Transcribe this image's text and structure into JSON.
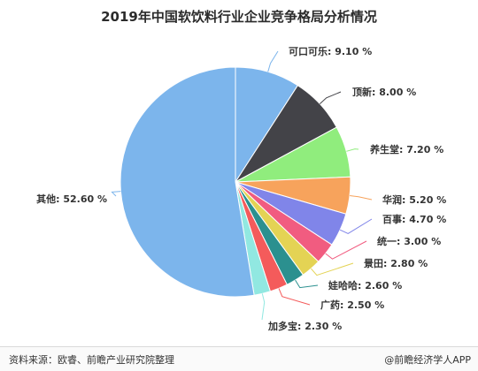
{
  "page": {
    "title": "2019年中国软饮料行业企业竞争格局分析情况",
    "source": "资料来源：欧睿、前瞻产业研究院整理",
    "brand": "@前瞻经济学人APP"
  },
  "chart_data": {
    "type": "pie",
    "title": "2019年中国软饮料行业企业竞争格局分析情况",
    "slices": [
      {
        "name": "可口可乐",
        "value": 9.1,
        "label": "可口可乐: 9.10 %",
        "color": "#7cb5ec"
      },
      {
        "name": "顶新",
        "value": 8.0,
        "label": "顶新: 8.00 %",
        "color": "#434348"
      },
      {
        "name": "养生堂",
        "value": 7.2,
        "label": "养生堂: 7.20 %",
        "color": "#90ed7d"
      },
      {
        "name": "华润",
        "value": 5.2,
        "label": "华润: 5.20 %",
        "color": "#f7a35c"
      },
      {
        "name": "百事",
        "value": 4.7,
        "label": "百事: 4.70 %",
        "color": "#8085e9"
      },
      {
        "name": "统一",
        "value": 3.0,
        "label": "统一: 3.00 %",
        "color": "#f15c80"
      },
      {
        "name": "景田",
        "value": 2.8,
        "label": "景田: 2.80 %",
        "color": "#e4d354"
      },
      {
        "name": "娃哈哈",
        "value": 2.6,
        "label": "娃哈哈: 2.60 %",
        "color": "#2b908f"
      },
      {
        "name": "广药",
        "value": 2.5,
        "label": "广药: 2.50 %",
        "color": "#f45b5b"
      },
      {
        "name": "加多宝",
        "value": 2.3,
        "label": "加多宝: 2.30 %",
        "color": "#91e8e1"
      },
      {
        "name": "其他",
        "value": 52.6,
        "label": "其他: 52.60 %",
        "color": "#7cb5ec"
      }
    ]
  }
}
